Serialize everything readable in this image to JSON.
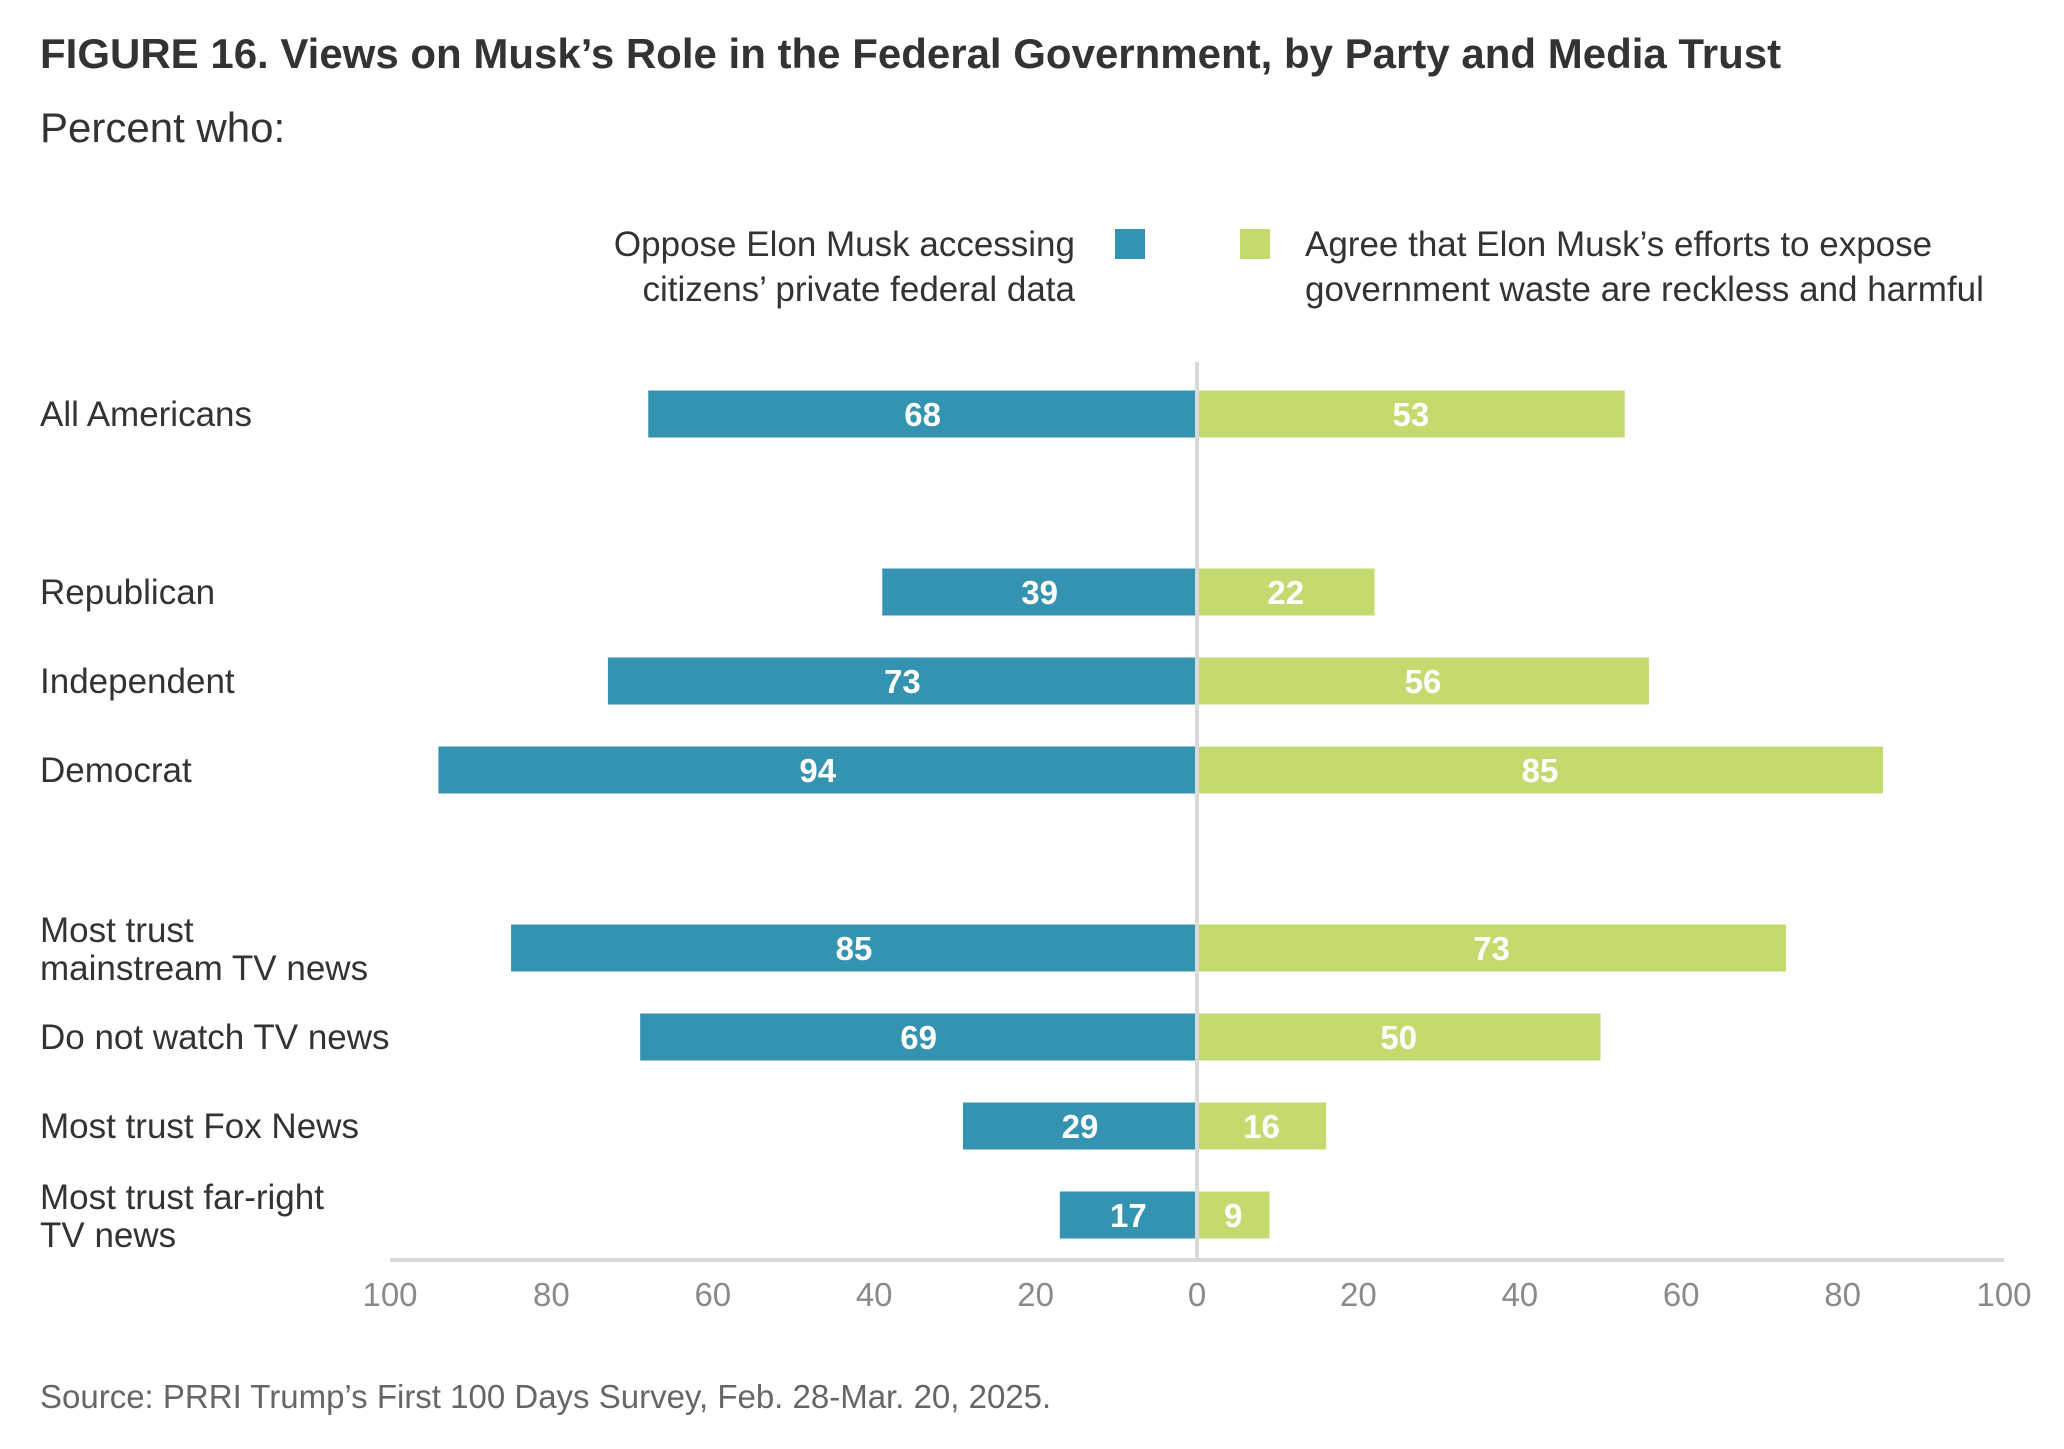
{
  "title": "FIGURE 16.  Views on Musk’s Role in the Federal Government, by Party and Media Trust",
  "subtitle": "Percent who:",
  "source": "Source: PRRI Trump’s First 100 Days Survey, Feb. 28-Mar. 20, 2025.",
  "chart_data": {
    "type": "bar",
    "orientation": "horizontal-diverging",
    "categories": [
      [
        "All Americans"
      ],
      [
        "Republican"
      ],
      [
        "Independent"
      ],
      [
        "Democrat"
      ],
      [
        "Most trust",
        "mainstream TV news"
      ],
      [
        "Do not watch TV news"
      ],
      [
        "Most trust Fox News"
      ],
      [
        "Most trust far-right",
        "TV news"
      ]
    ],
    "groups": [
      [
        0
      ],
      [
        1,
        2,
        3
      ],
      [
        4,
        5,
        6,
        7
      ]
    ],
    "series": [
      {
        "name_lines": [
          "Oppose Elon Musk accessing",
          "citizens’ private federal data"
        ],
        "side": "left",
        "color": "#3393b0",
        "values": [
          68,
          39,
          73,
          94,
          85,
          69,
          29,
          17
        ]
      },
      {
        "name_lines": [
          "Agree that Elon Musk’s efforts to expose",
          "government waste are reckless and harmful"
        ],
        "side": "right",
        "color": "#c3db6e",
        "values": [
          53,
          22,
          56,
          85,
          73,
          50,
          16,
          9
        ]
      }
    ],
    "xlim": [
      -100,
      100
    ],
    "x_ticks": [
      100,
      80,
      60,
      40,
      20,
      0,
      20,
      40,
      60,
      80,
      100
    ],
    "grid": false,
    "legend_position": "top"
  }
}
